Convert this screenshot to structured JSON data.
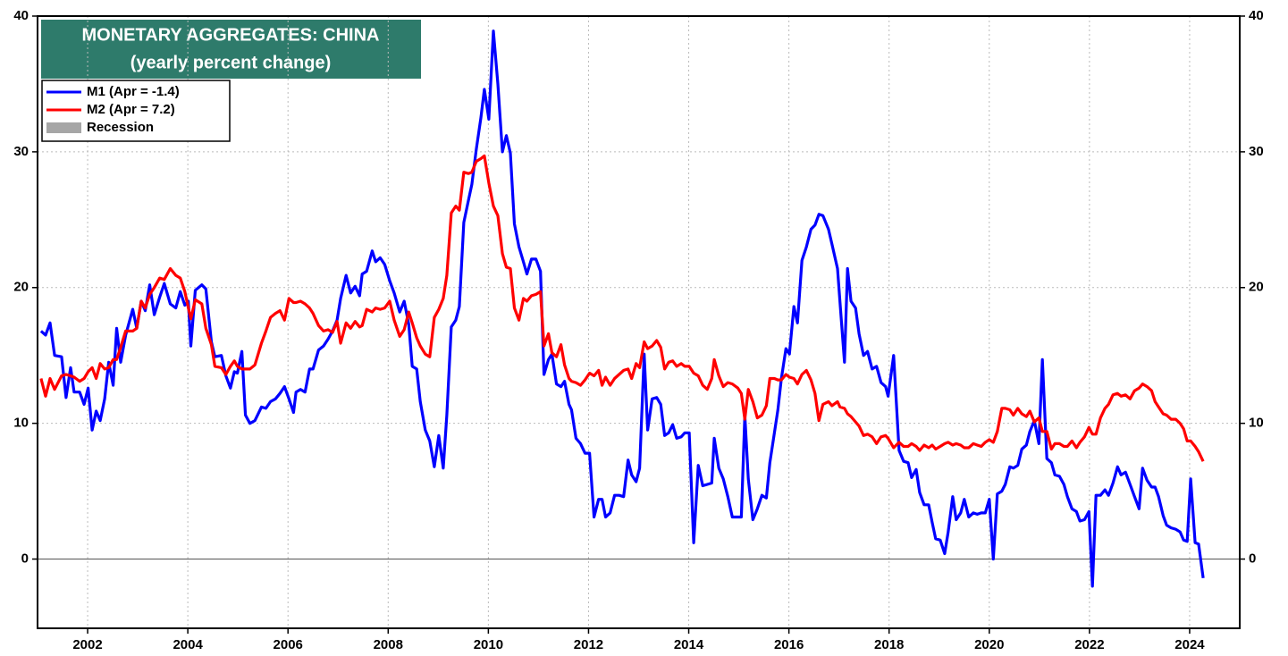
{
  "chart_data": {
    "type": "line",
    "title": "MONETARY AGGREGATES: CHINA",
    "subtitle": "(yearly percent change)",
    "recession_label": "Recession",
    "recession_color": "#a6a6a6",
    "xlim": [
      2001,
      2025
    ],
    "ylim": [
      -5.1,
      40
    ],
    "xticks": [
      2002,
      2004,
      2006,
      2008,
      2010,
      2012,
      2014,
      2016,
      2018,
      2020,
      2022,
      2024
    ],
    "yticks": [
      0,
      10,
      20,
      30,
      40
    ],
    "y2lim": [
      -5.1,
      40
    ],
    "y2ticks": [
      0,
      10,
      20,
      30,
      40
    ],
    "grid": true,
    "legend": "upper left",
    "x": [
      2001.07,
      2001.16,
      2001.25,
      2001.34,
      2001.48,
      2001.57,
      2001.66,
      2001.73,
      2001.84,
      2001.93,
      2002.01,
      2002.09,
      2002.17,
      2002.25,
      2002.34,
      2002.42,
      2002.51,
      2002.58,
      2002.66,
      2002.76,
      2002.9,
      2002.98,
      2003.07,
      2003.15,
      2003.24,
      2003.33,
      2003.44,
      2003.53,
      2003.65,
      2003.76,
      2003.85,
      2003.94,
      2004.01,
      2004.06,
      2004.15,
      2004.28,
      2004.36,
      2004.47,
      2004.54,
      2004.67,
      2004.76,
      2004.85,
      2004.93,
      2004.99,
      2005.08,
      2005.15,
      2005.24,
      2005.34,
      2005.47,
      2005.56,
      2005.65,
      2005.75,
      2005.84,
      2005.93,
      2006.02,
      2006.11,
      2006.16,
      2006.25,
      2006.34,
      2006.43,
      2006.5,
      2006.61,
      2006.71,
      2006.8,
      2006.89,
      2006.98,
      2007.05,
      2007.16,
      2007.25,
      2007.34,
      2007.43,
      2007.48,
      2007.57,
      2007.68,
      2007.75,
      2007.84,
      2007.93,
      2008.03,
      2008.12,
      2008.23,
      2008.32,
      2008.41,
      2008.48,
      2008.57,
      2008.64,
      2008.74,
      2008.83,
      2008.92,
      2009.01,
      2009.1,
      2009.17,
      2009.26,
      2009.35,
      2009.42,
      2009.51,
      2009.6,
      2009.67,
      2009.76,
      2009.85,
      2009.92,
      2010.01,
      2010.1,
      2010.19,
      2010.28,
      2010.36,
      2010.44,
      2010.52,
      2010.61,
      2010.7,
      2010.77,
      2010.86,
      2010.95,
      2011.04,
      2011.11,
      2011.2,
      2011.27,
      2011.36,
      2011.45,
      2011.52,
      2011.61,
      2011.66,
      2011.75,
      2011.84,
      2011.93,
      2012.02,
      2012.11,
      2012.2,
      2012.27,
      2012.34,
      2012.43,
      2012.52,
      2012.61,
      2012.7,
      2012.79,
      2012.86,
      2012.95,
      2013.02,
      2013.11,
      2013.18,
      2013.27,
      2013.36,
      2013.44,
      2013.52,
      2013.6,
      2013.68,
      2013.76,
      2013.85,
      2013.92,
      2014.01,
      2014.1,
      2014.19,
      2014.28,
      2014.37,
      2014.46,
      2014.51,
      2014.6,
      2014.69,
      2014.78,
      2014.87,
      2014.98,
      2015.05,
      2015.12,
      2015.19,
      2015.28,
      2015.37,
      2015.46,
      2015.55,
      2015.62,
      2015.71,
      2015.78,
      2015.85,
      2015.94,
      2016.01,
      2016.1,
      2016.17,
      2016.26,
      2016.35,
      2016.44,
      2016.52,
      2016.6,
      2016.68,
      2016.79,
      2016.86,
      2016.97,
      2017.02,
      2017.11,
      2017.17,
      2017.24,
      2017.33,
      2017.4,
      2017.49,
      2017.57,
      2017.66,
      2017.75,
      2017.84,
      2017.93,
      2017.98,
      2018.09,
      2018.2,
      2018.29,
      2018.38,
      2018.45,
      2018.54,
      2018.61,
      2018.7,
      2018.79,
      2018.86,
      2018.93,
      2019.02,
      2019.11,
      2019.18,
      2019.27,
      2019.34,
      2019.43,
      2019.5,
      2019.59,
      2019.68,
      2019.76,
      2019.84,
      2019.92,
      2020.0,
      2020.08,
      2020.16,
      2020.25,
      2020.32,
      2020.41,
      2020.48,
      2020.57,
      2020.65,
      2020.74,
      2020.81,
      2020.9,
      2020.99,
      2021.06,
      2021.15,
      2021.24,
      2021.31,
      2021.4,
      2021.49,
      2021.56,
      2021.65,
      2021.74,
      2021.81,
      2021.9,
      2021.99,
      2022.06,
      2022.13,
      2022.22,
      2022.31,
      2022.38,
      2022.47,
      2022.56,
      2022.63,
      2022.72,
      2022.81,
      2022.9,
      2022.99,
      2023.06,
      2023.15,
      2023.24,
      2023.31,
      2023.38,
      2023.47,
      2023.54,
      2023.63,
      2023.72,
      2023.81,
      2023.88,
      2023.95,
      2024.02,
      2024.11,
      2024.18,
      2024.27
    ],
    "series": [
      {
        "name": "M1 (Apr = -1.4)",
        "color": "#0000ff",
        "values": [
          16.8,
          16.5,
          17.4,
          15,
          14.9,
          11.9,
          14.1,
          12.3,
          12.3,
          11.4,
          12.6,
          9.5,
          10.9,
          10.2,
          11.8,
          14.5,
          12.8,
          17,
          14.5,
          16.5,
          18.4,
          17,
          19,
          18.3,
          20.2,
          18,
          19.3,
          20.3,
          18.8,
          18.5,
          19.7,
          18.7,
          19,
          15.7,
          19.8,
          20.2,
          19.9,
          16,
          14.9,
          15,
          13.5,
          12.6,
          13.8,
          13.7,
          15.3,
          10.6,
          10,
          10.2,
          11.2,
          11.1,
          11.6,
          11.8,
          12.2,
          12.7,
          11.8,
          10.8,
          12.3,
          12.5,
          12.3,
          14,
          14,
          15.4,
          15.7,
          16.2,
          16.8,
          17.6,
          19.2,
          20.9,
          19.6,
          20.1,
          19.4,
          21,
          21.2,
          22.7,
          21.9,
          22.2,
          21.7,
          20.5,
          19.6,
          18.2,
          19,
          17.3,
          14.2,
          14,
          11.6,
          9.5,
          8.7,
          6.8,
          9.1,
          6.7,
          10.6,
          17.1,
          17.6,
          18.6,
          24.8,
          26.4,
          27.6,
          30.2,
          32.5,
          34.6,
          32.4,
          38.9,
          35,
          30,
          31.2,
          29.9,
          24.7,
          23,
          21.9,
          21,
          22.1,
          22.1,
          21.2,
          13.6,
          14.7,
          15.1,
          12.9,
          12.7,
          13.1,
          11.4,
          11,
          8.9,
          8.5,
          7.8,
          7.8,
          3.1,
          4.4,
          4.4,
          3.1,
          3.4,
          4.7,
          4.7,
          4.6,
          7.3,
          6.2,
          5.7,
          6.7,
          15.1,
          9.5,
          11.8,
          11.9,
          11.4,
          9.1,
          9.3,
          9.9,
          8.9,
          9,
          9.3,
          9.3,
          1.2,
          6.9,
          5.4,
          5.5,
          5.6,
          8.9,
          6.7,
          5.9,
          4.6,
          3.1,
          3.1,
          3.1,
          10.6,
          5.9,
          2.9,
          3.7,
          4.7,
          4.5,
          7.1,
          9.3,
          11,
          13.3,
          15.5,
          15.1,
          18.6,
          17.4,
          22,
          23,
          24.3,
          24.6,
          25.4,
          25.3,
          24.3,
          23.2,
          21.4,
          18.9,
          14.5,
          21.4,
          19,
          18.5,
          16.6,
          15,
          15.3,
          14,
          14.2,
          13,
          12.7,
          12,
          15,
          8,
          7.2,
          7.1,
          6,
          6.6,
          4.9,
          4,
          4,
          2.7,
          1.5,
          1.4,
          0.4,
          2,
          4.6,
          2.9,
          3.4,
          4.4,
          3.1,
          3.4,
          3.3,
          3.4,
          3.4,
          4.4,
          0,
          4.8,
          5,
          5.5,
          6.8,
          6.7,
          6.9,
          8.1,
          8.4,
          9.4,
          10.2,
          8.5,
          14.7,
          7.4,
          7.1,
          6.2,
          6.1,
          5.5,
          4.6,
          3.7,
          3.5,
          2.8,
          2.9,
          3.5,
          -2,
          4.7,
          4.7,
          5.1,
          4.7,
          5.6,
          6.8,
          6.2,
          6.4,
          5.5,
          4.6,
          3.7,
          6.7,
          5.8,
          5.3,
          5.3,
          4.6,
          3.2,
          2.5,
          2.3,
          2.2,
          2,
          1.4,
          1.3,
          5.9,
          1.2,
          1.1,
          -1.4
        ]
      },
      {
        "name": "M2 (Apr = 7.2)",
        "color": "#ff0000",
        "values": [
          13.3,
          12,
          13.3,
          12.5,
          13.5,
          13.6,
          13.5,
          13.4,
          13.1,
          13.3,
          13.8,
          14.1,
          13.3,
          14.4,
          14,
          14.1,
          14.7,
          14.7,
          15.6,
          16.8,
          16.8,
          17,
          19,
          18.5,
          19.5,
          20,
          20.7,
          20.6,
          21.4,
          20.9,
          20.7,
          19.7,
          18.5,
          17.7,
          19.1,
          18.8,
          17,
          15.8,
          14.2,
          14.1,
          13.6,
          14.2,
          14.6,
          14.2,
          14,
          14,
          14,
          14.3,
          15.9,
          16.8,
          17.8,
          18.1,
          18.3,
          17.6,
          19.2,
          18.9,
          18.9,
          19,
          18.8,
          18.5,
          18.1,
          17.2,
          16.8,
          16.9,
          16.7,
          17.5,
          15.9,
          17.4,
          17,
          17.5,
          17.1,
          17.2,
          18.4,
          18.2,
          18.5,
          18.4,
          18.5,
          19,
          17.6,
          16.4,
          16.9,
          18.2,
          17.4,
          16.3,
          15.7,
          15.1,
          14.9,
          17.8,
          18.4,
          19.2,
          20.9,
          25.5,
          26,
          25.7,
          28.5,
          28.4,
          28.5,
          29.3,
          29.5,
          29.7,
          27.7,
          26,
          25.3,
          22.5,
          21.5,
          21.4,
          18.5,
          17.6,
          19.2,
          19,
          19.4,
          19.5,
          19.7,
          15.7,
          16.6,
          15.2,
          14.9,
          15.8,
          14.3,
          13.3,
          13.1,
          13,
          12.8,
          13.2,
          13.7,
          13.5,
          13.9,
          12.8,
          13.4,
          12.8,
          13.3,
          13.6,
          13.9,
          14,
          13.3,
          14.4,
          14.1,
          16,
          15.5,
          15.7,
          16.1,
          15.6,
          14,
          14.5,
          14.6,
          14.2,
          14.4,
          14.2,
          14.2,
          13.7,
          13.5,
          12.8,
          12.5,
          13.3,
          14.7,
          13.5,
          12.7,
          13,
          12.9,
          12.6,
          12.2,
          10.3,
          12.5,
          11.6,
          10.4,
          10.6,
          11.3,
          13.3,
          13.3,
          13.2,
          13.2,
          13.6,
          13.4,
          13.3,
          12.9,
          13.6,
          13.9,
          13.2,
          12.2,
          10.2,
          11.4,
          11.6,
          11.3,
          11.6,
          11.2,
          11.1,
          10.7,
          10.5,
          10.1,
          9.8,
          9.1,
          9.2,
          9,
          8.5,
          9,
          9.1,
          8.9,
          8.2,
          8.6,
          8.3,
          8.3,
          8.5,
          8.3,
          8,
          8.4,
          8.2,
          8.4,
          8.1,
          8.3,
          8.5,
          8.6,
          8.4,
          8.5,
          8.4,
          8.2,
          8.2,
          8.5,
          8.4,
          8.3,
          8.6,
          8.8,
          8.6,
          9.4,
          11.1,
          11.1,
          11,
          10.6,
          11.1,
          10.7,
          10.5,
          10.9,
          10.1,
          10.4,
          9.4,
          9.4,
          8.1,
          8.5,
          8.5,
          8.3,
          8.3,
          8.7,
          8.2,
          8.6,
          9,
          9.7,
          9.2,
          9.2,
          10.4,
          11.1,
          11.4,
          12.1,
          12.2,
          12,
          12.1,
          11.8,
          12.4,
          12.6,
          12.9,
          12.7,
          12.4,
          11.6,
          11.2,
          10.7,
          10.6,
          10.3,
          10.3,
          10,
          9.6,
          8.7,
          8.7,
          8.3,
          7.9,
          7.2
        ]
      }
    ]
  }
}
